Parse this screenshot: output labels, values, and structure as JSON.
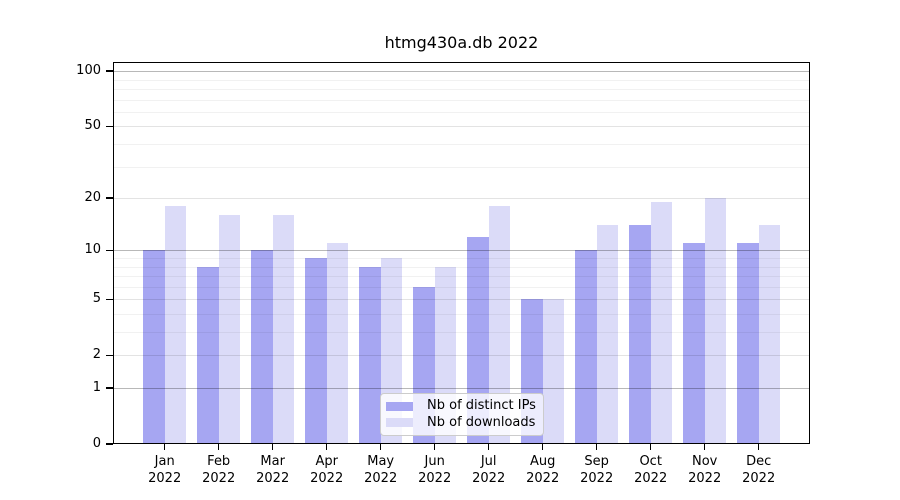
{
  "page": {
    "background": "#ffffff"
  },
  "chart_data": {
    "type": "bar",
    "title": "htmg430a.db 2022",
    "scale": "log1p",
    "grid": true,
    "categories": [
      "Jan",
      "Feb",
      "Mar",
      "Apr",
      "May",
      "Jun",
      "Jul",
      "Aug",
      "Sep",
      "Oct",
      "Nov",
      "Dec"
    ],
    "x_year_label": "2022",
    "series": [
      {
        "name": "Nb of distinct IPs",
        "color": "#a6a6f2",
        "values": [
          10,
          8,
          10,
          9,
          8,
          6,
          12,
          5,
          10,
          14,
          11,
          11
        ]
      },
      {
        "name": "Nb of downloads",
        "color": "#dbdbf8",
        "values": [
          18,
          16,
          16,
          11,
          9,
          8,
          18,
          5,
          14,
          19,
          20,
          14
        ]
      }
    ],
    "y_ticks": [
      0,
      1,
      2,
      5,
      10,
      20,
      50,
      100
    ],
    "ylim": [
      0,
      112
    ],
    "xlabel": "",
    "ylabel": "",
    "legend_position": "lower-center"
  }
}
